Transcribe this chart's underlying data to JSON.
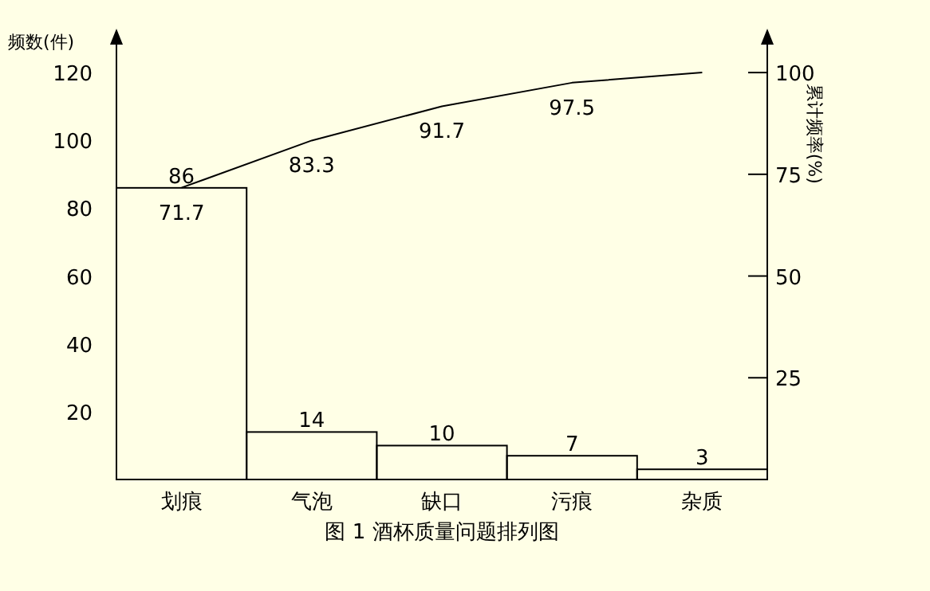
{
  "chart_data": {
    "type": "bar",
    "title": "图 1  酒杯质量问题排列图",
    "ylabel": "频数(件)",
    "y2label": "累计频率(%)",
    "categories": [
      "划痕",
      "气泡",
      "缺口",
      "污痕",
      "杂质"
    ],
    "ylim": [
      0,
      132
    ],
    "yticks": [
      20,
      40,
      60,
      80,
      100,
      120
    ],
    "y2lim": [
      0,
      110
    ],
    "y2ticks": [
      25,
      50,
      75,
      100
    ],
    "data_labels": true,
    "grid": false,
    "legend": false,
    "marker": "none",
    "line_style": "solid",
    "series": [
      {
        "type": "bar",
        "color": "#000000",
        "values": [
          86,
          14,
          10,
          7,
          3
        ]
      },
      {
        "type": "line",
        "axis": "y2",
        "color": "#000000",
        "values": [
          71.7,
          83.3,
          91.7,
          97.5,
          100
        ],
        "value_labels": [
          "71.7",
          "83.3",
          "91.7",
          "97.5",
          null
        ]
      }
    ]
  }
}
